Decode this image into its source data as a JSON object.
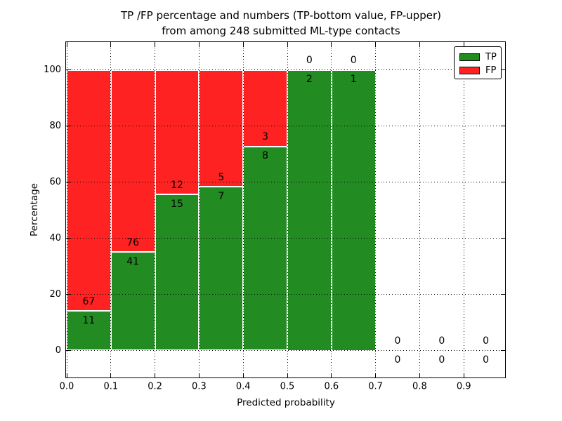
{
  "chart_data": {
    "type": "bar",
    "stacked": true,
    "title_line1": "TP /FP percentage and numbers (TP-bottom value, FP-upper)",
    "title_line2": "from among 248 submitted ML-type contacts",
    "xlabel": "Predicted probability",
    "ylabel": "Percentage",
    "total_contacts": 248,
    "bins": [
      "0.0-0.1",
      "0.1-0.2",
      "0.2-0.3",
      "0.3-0.4",
      "0.4-0.5",
      "0.5-0.6",
      "0.6-0.7",
      "0.7-0.8",
      "0.8-0.9",
      "0.9-1.0"
    ],
    "bin_starts": [
      0.0,
      0.1,
      0.2,
      0.3,
      0.4,
      0.5,
      0.6,
      0.7,
      0.8,
      0.9
    ],
    "series": [
      {
        "name": "TP",
        "color": "#228B22",
        "counts": [
          11,
          41,
          15,
          7,
          8,
          2,
          1,
          0,
          0,
          0
        ]
      },
      {
        "name": "FP",
        "color": "#ff2222",
        "counts": [
          67,
          76,
          12,
          5,
          3,
          0,
          0,
          0,
          0,
          0
        ]
      }
    ],
    "tp_percent": [
      14.1,
      35.0,
      55.6,
      58.3,
      72.7,
      100.0,
      100.0,
      null,
      null,
      null
    ],
    "x_ticks": [
      0.0,
      0.1,
      0.2,
      0.3,
      0.4,
      0.5,
      0.6,
      0.7,
      0.8,
      0.9
    ],
    "x_tick_labels": [
      "0.0",
      "0.1",
      "0.2",
      "0.3",
      "0.4",
      "0.5",
      "0.6",
      "0.7",
      "0.8",
      "0.9"
    ],
    "y_ticks": [
      0,
      20,
      40,
      60,
      80,
      100
    ],
    "y_tick_labels": [
      "0",
      "20",
      "40",
      "60",
      "80",
      "100"
    ],
    "ylim": [
      -10,
      110
    ],
    "grid": true,
    "grid_style": "dotted",
    "bar_edge_color": "#ffffff",
    "legend": {
      "position": "upper right",
      "items": [
        {
          "label": "TP",
          "color": "#228B22"
        },
        {
          "label": "FP",
          "color": "#ff2222"
        }
      ]
    }
  }
}
